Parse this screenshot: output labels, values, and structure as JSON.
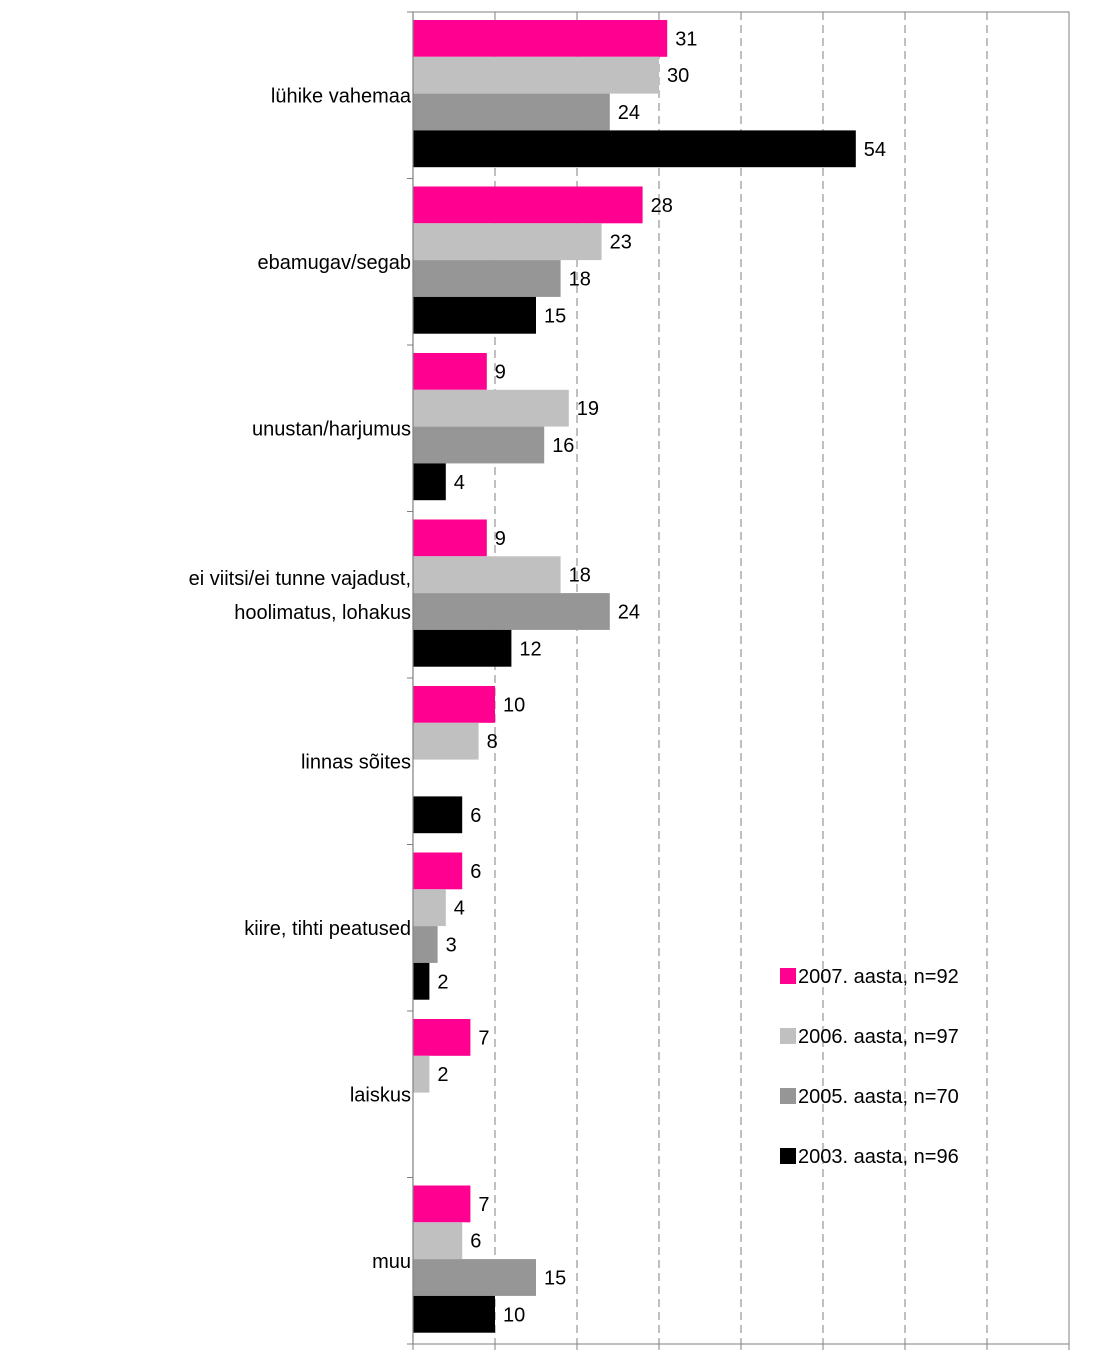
{
  "chart_data": {
    "type": "bar",
    "orientation": "horizontal",
    "categories": [
      "lühike vahemaa",
      "ebamugav/segab",
      "unustan/harjumus",
      "ei viitsi/ei tunne vajadust, hoolimatus, lohakus",
      "linnas sõites",
      "kiire, tihti peatused",
      "laiskus",
      "muu"
    ],
    "series": [
      {
        "name": "2007. aasta, n=92",
        "color": "#ff0090",
        "values": [
          31,
          28,
          9,
          9,
          10,
          6,
          7,
          7
        ]
      },
      {
        "name": "2006. aasta, n=97",
        "color": "#c0c0c0",
        "values": [
          30,
          23,
          19,
          18,
          8,
          4,
          2,
          6
        ]
      },
      {
        "name": "2005. aasta, n=70",
        "color": "#969696",
        "values": [
          24,
          18,
          16,
          24,
          null,
          3,
          null,
          15
        ]
      },
      {
        "name": "2003. aasta, n=96",
        "color": "#000000",
        "values": [
          54,
          15,
          4,
          12,
          6,
          2,
          null,
          10
        ]
      }
    ],
    "xlim": [
      0,
      80
    ],
    "xticks": [
      "0%",
      "10%",
      "20%",
      "30%",
      "40%",
      "50%",
      "60%",
      "70%",
      "80%"
    ],
    "grid": "vertical dashed",
    "legend_position": "lower-right"
  }
}
